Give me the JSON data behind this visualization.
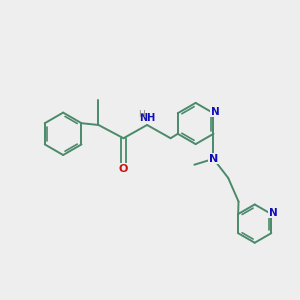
{
  "bg_color": "#eeeeee",
  "bond_color": "#4a8a6a",
  "n_color": "#1010bb",
  "o_color": "#cc1010",
  "figsize": [
    3.0,
    3.0
  ],
  "dpi": 100,
  "xlim": [
    0,
    10
  ],
  "ylim": [
    0,
    10
  ]
}
